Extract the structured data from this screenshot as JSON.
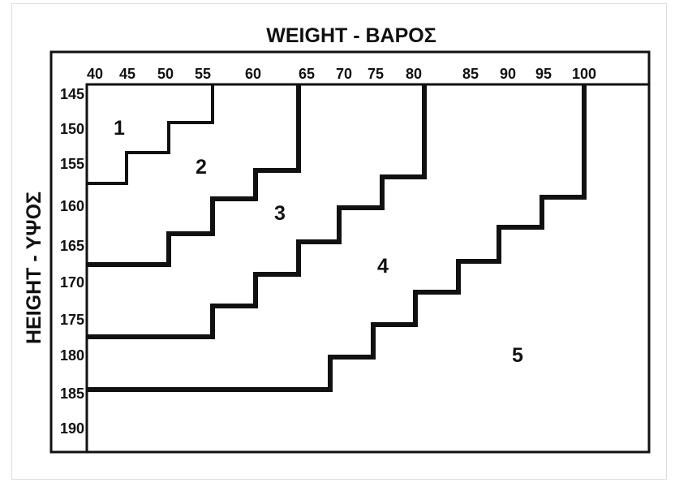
{
  "title": "WEIGHT - ΒΑΡΟΣ",
  "y_title": "HEIGHT - ΥΨΟΣ",
  "weight_ticks": [
    "40",
    "45",
    "50",
    "55",
    "60",
    "65",
    "70",
    "75",
    "80",
    "85",
    "90",
    "95",
    "100"
  ],
  "height_ticks": [
    "145",
    "150",
    "155",
    "160",
    "165",
    "170",
    "175",
    "180",
    "185",
    "190"
  ],
  "zones": [
    "1",
    "2",
    "3",
    "4",
    "5"
  ],
  "colors": {
    "line": "#111111",
    "background": "#ffffff"
  }
}
